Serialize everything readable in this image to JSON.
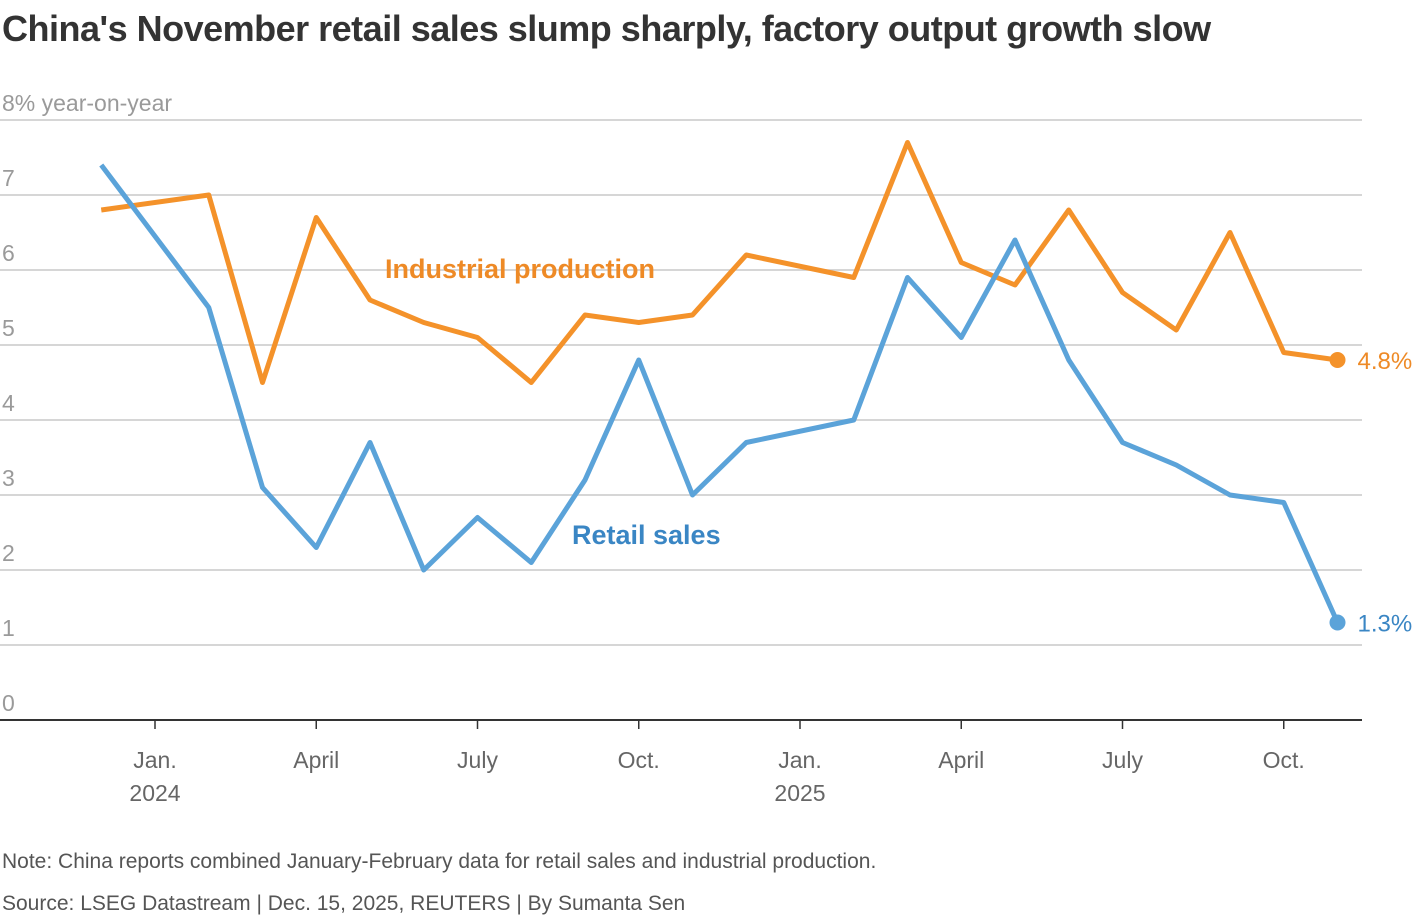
{
  "title": "China's November retail sales slump sharply, factory output growth slow",
  "note": "Note: China reports combined January-February data for retail sales and industrial production.",
  "source": "Source: LSEG Datastream | Dec. 15, 2025, REUTERS | By Sumanta Sen",
  "chart_data": {
    "type": "line",
    "title": "China's November retail sales slump sharply, factory output growth slow",
    "ylabel": "% year-on-year",
    "top_tick_label": "8% year-on-year",
    "ylim": [
      0,
      8
    ],
    "yticks": [
      0,
      1,
      2,
      3,
      4,
      5,
      6,
      7,
      8
    ],
    "grid": "horizontal",
    "xticks": [
      {
        "date": "2024-01",
        "label": "Jan.",
        "sublabel": "2024"
      },
      {
        "date": "2024-04",
        "label": "April",
        "sublabel": ""
      },
      {
        "date": "2024-07",
        "label": "July",
        "sublabel": ""
      },
      {
        "date": "2024-10",
        "label": "Oct.",
        "sublabel": ""
      },
      {
        "date": "2025-01",
        "label": "Jan.",
        "sublabel": "2025"
      },
      {
        "date": "2025-04",
        "label": "April",
        "sublabel": ""
      },
      {
        "date": "2025-07",
        "label": "July",
        "sublabel": ""
      },
      {
        "date": "2025-10",
        "label": "Oct.",
        "sublabel": ""
      }
    ],
    "x": [
      "2023-12",
      "2024-02",
      "2024-03",
      "2024-04",
      "2024-05",
      "2024-06",
      "2024-07",
      "2024-08",
      "2024-09",
      "2024-10",
      "2024-11",
      "2024-12",
      "2025-02",
      "2025-03",
      "2025-04",
      "2025-05",
      "2025-06",
      "2025-07",
      "2025-08",
      "2025-09",
      "2025-10",
      "2025-11"
    ],
    "series": [
      {
        "name": "Industrial production",
        "color": "#F4922A",
        "label_color": "#EE8A26",
        "end_label": "4.8%",
        "values": [
          6.8,
          7.0,
          4.5,
          6.7,
          5.6,
          5.3,
          5.1,
          4.5,
          5.4,
          5.3,
          5.4,
          6.2,
          5.9,
          7.7,
          6.1,
          5.8,
          6.8,
          5.7,
          5.2,
          6.5,
          4.9,
          4.8
        ]
      },
      {
        "name": "Retail sales",
        "color": "#5BA3D9",
        "label_color": "#3A86C4",
        "end_label": "1.3%",
        "values": [
          7.4,
          5.5,
          3.1,
          2.3,
          3.7,
          2.0,
          2.7,
          2.1,
          3.2,
          4.8,
          3.0,
          3.7,
          4.0,
          5.9,
          5.1,
          6.4,
          4.8,
          3.7,
          3.4,
          3.0,
          2.9,
          1.3
        ]
      }
    ]
  }
}
